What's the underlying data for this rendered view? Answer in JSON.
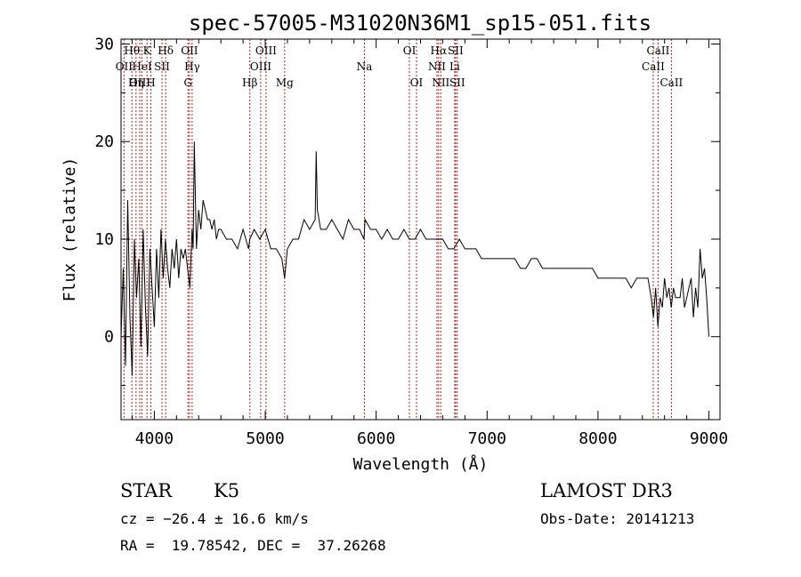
{
  "chart_data": {
    "type": "line",
    "title": "spec-57005-M31020N36M1_sp15-051.fits",
    "xlabel": "Wavelength (Å)",
    "ylabel": "Flux (relative)",
    "xlim": [
      3700,
      9100
    ],
    "ylim": [
      -8.5,
      30.5
    ],
    "xticks": [
      4000,
      5000,
      6000,
      7000,
      8000,
      9000
    ],
    "yticks": [
      0,
      10,
      20,
      30
    ],
    "grid": false,
    "line_color": "#000000",
    "marker_color": "#b22222",
    "series": [
      {
        "name": "spectrum",
        "x": [
          3700,
          3720,
          3740,
          3760,
          3780,
          3800,
          3820,
          3840,
          3860,
          3880,
          3900,
          3920,
          3940,
          3960,
          3980,
          4000,
          4020,
          4040,
          4060,
          4080,
          4100,
          4120,
          4140,
          4160,
          4180,
          4200,
          4220,
          4240,
          4260,
          4280,
          4300,
          4320,
          4340,
          4350,
          4360,
          4380,
          4400,
          4420,
          4440,
          4460,
          4480,
          4500,
          4520,
          4540,
          4560,
          4580,
          4600,
          4650,
          4700,
          4750,
          4800,
          4850,
          4860,
          4900,
          4950,
          5000,
          5050,
          5100,
          5150,
          5175,
          5200,
          5250,
          5300,
          5350,
          5400,
          5450,
          5460,
          5470,
          5500,
          5550,
          5600,
          5650,
          5700,
          5750,
          5800,
          5850,
          5890,
          5900,
          5950,
          6000,
          6050,
          6100,
          6150,
          6200,
          6250,
          6300,
          6350,
          6400,
          6450,
          6500,
          6550,
          6563,
          6600,
          6650,
          6700,
          6750,
          6800,
          6850,
          6900,
          6950,
          7000,
          7050,
          7100,
          7150,
          7200,
          7250,
          7300,
          7350,
          7400,
          7450,
          7500,
          7550,
          7600,
          7650,
          7700,
          7750,
          7800,
          7850,
          7900,
          7950,
          8000,
          8050,
          8100,
          8150,
          8200,
          8250,
          8300,
          8350,
          8400,
          8450,
          8480,
          8500,
          8520,
          8540,
          8560,
          8580,
          8600,
          8620,
          8640,
          8660,
          8680,
          8700,
          8720,
          8740,
          8760,
          8780,
          8800,
          8820,
          8840,
          8860,
          8880,
          8900,
          8920,
          8940,
          8960,
          8980,
          9000
        ],
        "y": [
          0,
          7,
          -3,
          14,
          2,
          -4,
          10,
          4,
          8,
          -1,
          11,
          3,
          -2,
          9,
          5,
          1,
          9,
          4,
          11,
          6,
          10,
          7,
          5,
          9,
          7,
          10,
          6,
          9,
          8,
          9,
          7,
          5,
          11,
          9,
          20,
          9,
          13,
          11,
          14,
          13,
          12,
          12,
          11,
          12,
          10,
          11,
          11,
          10,
          10,
          9,
          11,
          9,
          10,
          11,
          10,
          11,
          9,
          9,
          8,
          6,
          9,
          10,
          10,
          12,
          11,
          12,
          19,
          13,
          11,
          11,
          12,
          11,
          10,
          12,
          11,
          11,
          10,
          12,
          11,
          11,
          10,
          11,
          10,
          10,
          11,
          10,
          10,
          11,
          10,
          10,
          10,
          10,
          10,
          9,
          9,
          10,
          9,
          9,
          9,
          8,
          8,
          8,
          8,
          8,
          8,
          8,
          7,
          7,
          8,
          8,
          7,
          7,
          7,
          7,
          7,
          7,
          7,
          7,
          7,
          7,
          6,
          6,
          6,
          6,
          6,
          6,
          5,
          6,
          6,
          6,
          4,
          2,
          5,
          1,
          4,
          3,
          6,
          4,
          5,
          3,
          5,
          4,
          4,
          4,
          6,
          3,
          4,
          5,
          6,
          2,
          5,
          3,
          9,
          6,
          7,
          4,
          0
        ]
      }
    ],
    "line_markers": [
      {
        "label": "Hθ",
        "w": 3798,
        "row": 0
      },
      {
        "label": "OII",
        "w": 3727,
        "row": 1
      },
      {
        "label": "OIII",
        "w": 3869,
        "row": 2
      },
      {
        "label": "K",
        "w": 3934,
        "row": 0
      },
      {
        "label": "HeI",
        "w": 3889,
        "row": 1
      },
      {
        "label": "Hη",
        "w": 3835,
        "row": 2
      },
      {
        "label": "H",
        "w": 3969,
        "row": 2
      },
      {
        "label": "Hδ",
        "w": 4102,
        "row": 0
      },
      {
        "label": "SII",
        "w": 4069,
        "row": 1
      },
      {
        "label": "OII",
        "w": 4317,
        "row": 0
      },
      {
        "label": "Hγ",
        "w": 4341,
        "row": 1
      },
      {
        "label": "G",
        "w": 4304,
        "row": 2
      },
      {
        "label": "OIII",
        "w": 5007,
        "row": 0
      },
      {
        "label": "OIII",
        "w": 4959,
        "row": 1
      },
      {
        "label": "Hβ",
        "w": 4861,
        "row": 2
      },
      {
        "label": "Mg",
        "w": 5175,
        "row": 2
      },
      {
        "label": "Na",
        "w": 5894,
        "row": 1
      },
      {
        "label": "OI",
        "w": 6300,
        "row": 0
      },
      {
        "label": "OI",
        "w": 6364,
        "row": 2
      },
      {
        "label": "Hα",
        "w": 6563,
        "row": 0
      },
      {
        "label": "SII",
        "w": 6716,
        "row": 0
      },
      {
        "label": "NII",
        "w": 6548,
        "row": 1
      },
      {
        "label": "Li",
        "w": 6708,
        "row": 1
      },
      {
        "label": "NII",
        "w": 6583,
        "row": 2
      },
      {
        "label": "SII",
        "w": 6731,
        "row": 2
      },
      {
        "label": "CaII",
        "w": 8542,
        "row": 0
      },
      {
        "label": "CaII",
        "w": 8498,
        "row": 1
      },
      {
        "label": "CaII",
        "w": 8662,
        "row": 2
      }
    ]
  },
  "info": {
    "object_class": "STAR",
    "subclass": "K5",
    "survey": "LAMOST DR3",
    "cz": "cz = −26.4 ± 16.6 km/s",
    "obs_date": "Obs-Date: 20141213",
    "coords": "RA =  19.78542, DEC =  37.26268"
  }
}
